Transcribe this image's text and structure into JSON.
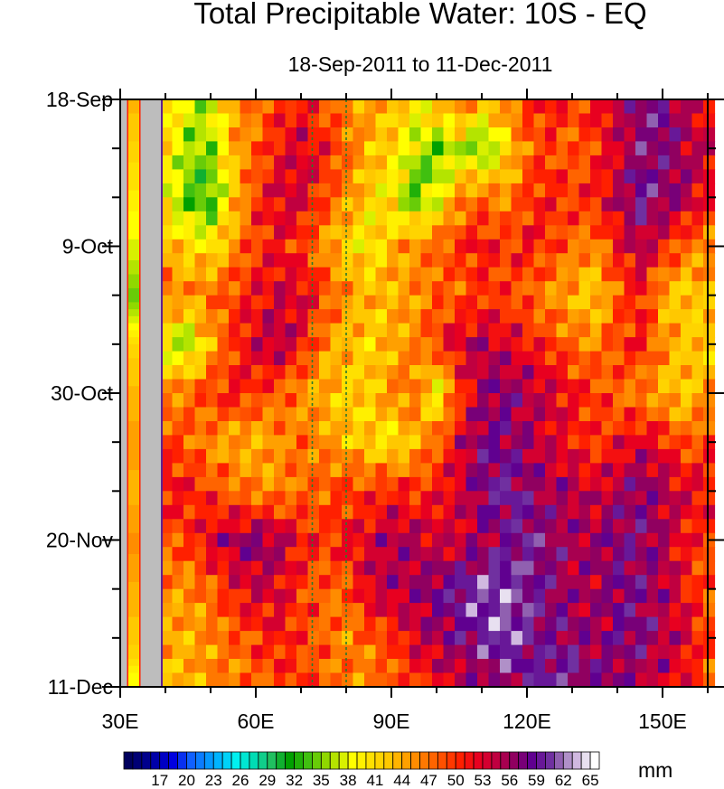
{
  "chart_data": {
    "type": "heatmap",
    "title": "Total Precipitable Water: 10S - EQ",
    "subtitle": "18-Sep-2011 to 11-Dec-2011",
    "xlabel": "",
    "ylabel": "",
    "xlim": [
      30,
      160
    ],
    "ylim_days": [
      0,
      84
    ],
    "x_ticks": [
      {
        "value": 30,
        "label": "30E"
      },
      {
        "value": 60,
        "label": "60E"
      },
      {
        "value": 90,
        "label": "90E"
      },
      {
        "value": 120,
        "label": "120E"
      },
      {
        "value": 150,
        "label": "150E"
      }
    ],
    "y_ticks": [
      {
        "day": 0,
        "label": "18-Sep"
      },
      {
        "day": 21,
        "label": "9-Oct"
      },
      {
        "day": 42,
        "label": "30-Oct"
      },
      {
        "day": 63,
        "label": "20-Nov"
      },
      {
        "day": 84,
        "label": "11-Dec"
      }
    ],
    "colorbar": {
      "units": "mm",
      "levels_min": 14,
      "levels_max": 65,
      "labels": [
        "17",
        "20",
        "23",
        "26",
        "29",
        "32",
        "35",
        "38",
        "41",
        "44",
        "47",
        "50",
        "53",
        "56",
        "59",
        "62",
        "65"
      ]
    },
    "reference_lines_lon": [
      72.5,
      80
    ],
    "missing_lon_ranges": [
      [
        30,
        31.5
      ],
      [
        34.5,
        39
      ]
    ],
    "strip_lon": 33,
    "strip_values": [
      44,
      42,
      40,
      38,
      35,
      42,
      44,
      45,
      44,
      46,
      44,
      43,
      38
    ],
    "lons": [
      40,
      45,
      50,
      55,
      60,
      65,
      70,
      75,
      80,
      85,
      90,
      95,
      100,
      105,
      110,
      115,
      120,
      125,
      130,
      135,
      140,
      145,
      150,
      155,
      160
    ],
    "days": [
      0,
      7,
      14,
      21,
      28,
      35,
      42,
      49,
      56,
      63,
      70,
      77,
      84
    ],
    "values": [
      [
        42,
        38,
        38,
        45,
        47,
        50,
        52,
        48,
        46,
        45,
        44,
        40,
        45,
        48,
        44,
        47,
        50,
        52,
        50,
        52,
        55,
        58,
        60,
        55,
        52
      ],
      [
        42,
        36,
        36,
        44,
        48,
        52,
        54,
        52,
        48,
        44,
        42,
        38,
        34,
        38,
        34,
        40,
        48,
        50,
        48,
        50,
        54,
        58,
        58,
        56,
        54
      ],
      [
        40,
        34,
        33,
        42,
        50,
        54,
        54,
        50,
        46,
        42,
        40,
        34,
        38,
        46,
        48,
        46,
        50,
        52,
        50,
        52,
        55,
        60,
        58,
        56,
        52
      ],
      [
        44,
        42,
        40,
        46,
        50,
        52,
        50,
        46,
        42,
        40,
        44,
        46,
        48,
        50,
        52,
        50,
        52,
        50,
        48,
        46,
        52,
        56,
        52,
        48,
        46
      ],
      [
        48,
        46,
        48,
        50,
        52,
        54,
        54,
        50,
        46,
        44,
        44,
        46,
        48,
        48,
        50,
        50,
        48,
        46,
        44,
        42,
        48,
        52,
        44,
        42,
        44
      ],
      [
        38,
        36,
        44,
        50,
        54,
        56,
        52,
        46,
        44,
        42,
        44,
        46,
        50,
        54,
        56,
        54,
        52,
        50,
        48,
        46,
        50,
        52,
        46,
        44,
        42
      ],
      [
        46,
        48,
        50,
        52,
        50,
        48,
        46,
        44,
        42,
        42,
        46,
        48,
        38,
        50,
        56,
        58,
        56,
        54,
        52,
        50,
        48,
        46,
        44,
        42,
        46
      ],
      [
        50,
        48,
        46,
        44,
        44,
        46,
        48,
        46,
        44,
        42,
        40,
        44,
        48,
        54,
        58,
        58,
        56,
        54,
        52,
        50,
        52,
        54,
        52,
        48,
        50
      ],
      [
        52,
        52,
        50,
        48,
        46,
        46,
        48,
        48,
        50,
        50,
        52,
        50,
        52,
        54,
        58,
        60,
        58,
        56,
        56,
        54,
        56,
        58,
        56,
        54,
        52
      ],
      [
        48,
        50,
        54,
        56,
        58,
        56,
        52,
        50,
        52,
        54,
        56,
        56,
        54,
        54,
        56,
        58,
        60,
        58,
        56,
        56,
        58,
        58,
        56,
        52,
        50
      ],
      [
        46,
        46,
        48,
        52,
        54,
        54,
        50,
        48,
        48,
        54,
        56,
        56,
        58,
        60,
        62,
        62,
        60,
        58,
        56,
        56,
        58,
        58,
        56,
        52,
        48
      ],
      [
        44,
        44,
        46,
        48,
        50,
        52,
        50,
        48,
        46,
        48,
        50,
        54,
        56,
        58,
        60,
        62,
        60,
        58,
        58,
        56,
        58,
        58,
        56,
        54,
        50
      ],
      [
        44,
        44,
        46,
        46,
        48,
        50,
        50,
        48,
        48,
        46,
        48,
        50,
        52,
        54,
        56,
        58,
        58,
        60,
        60,
        58,
        56,
        56,
        54,
        52,
        48
      ]
    ]
  }
}
